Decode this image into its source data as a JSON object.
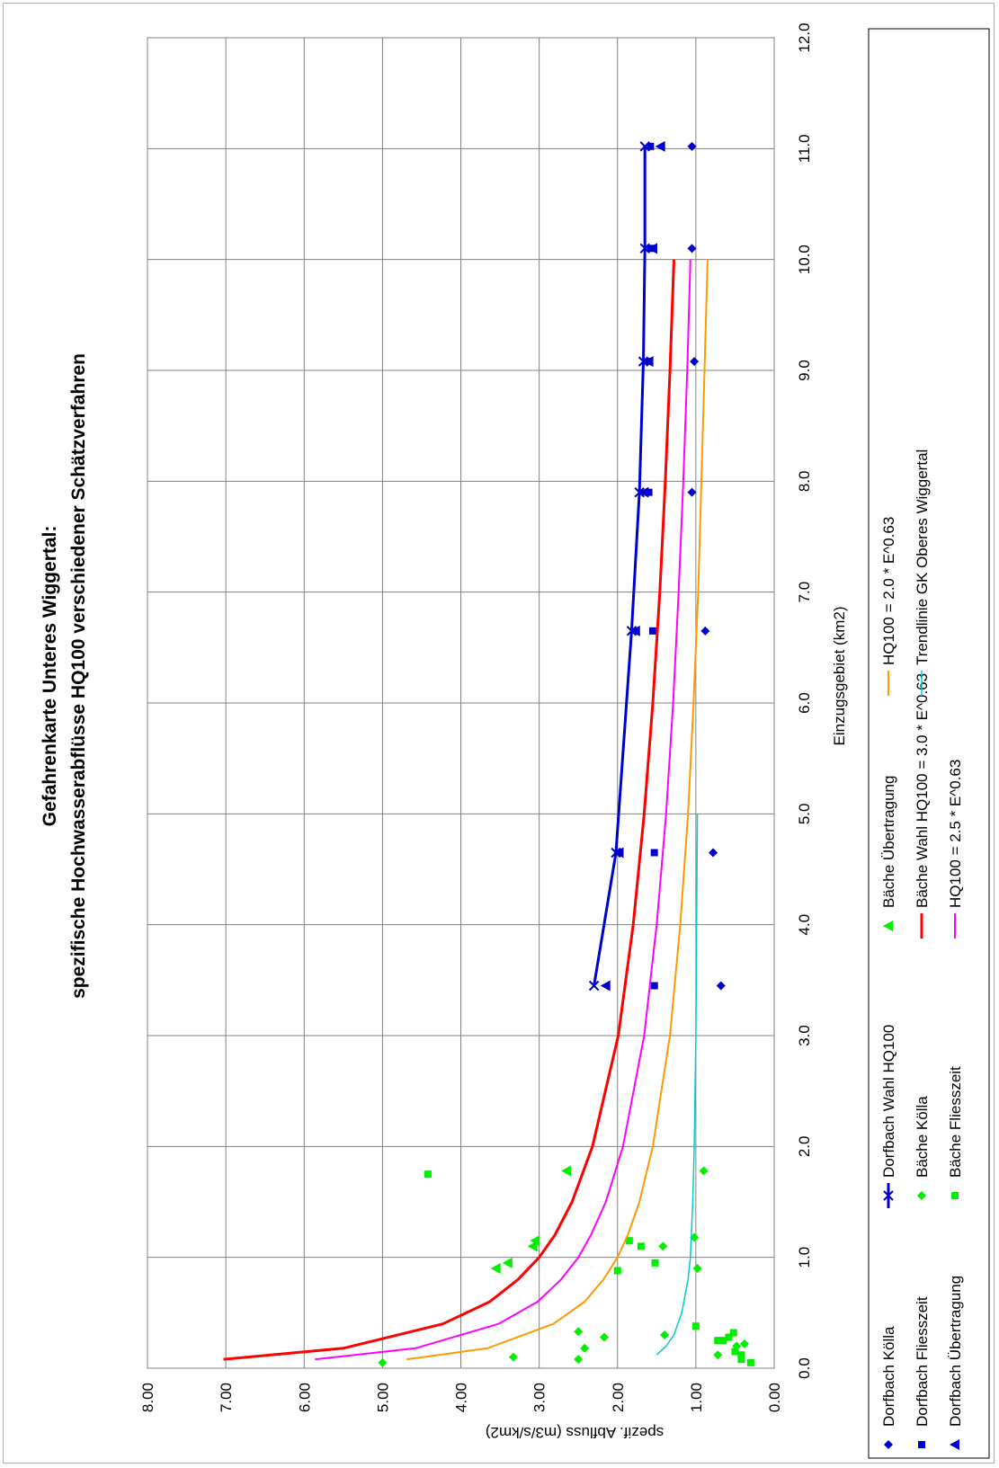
{
  "chart_data": {
    "type": "scatter",
    "title": "Gefahrenkarte Unteres Wiggertal:",
    "subtitle": "spezifische Hochwasserabflüsse HQ100 verschiedener Schätzverfahren",
    "xlabel": "Einzugsgebiet (km2)",
    "ylabel": "spezif. Abfluss (m3/s/km2)",
    "xlim": [
      0,
      12
    ],
    "ylim": [
      0,
      8
    ],
    "x_ticks": [
      "0.0",
      "1.0",
      "2.0",
      "3.0",
      "4.0",
      "5.0",
      "6.0",
      "7.0",
      "8.0",
      "9.0",
      "10.0",
      "11.0",
      "12.0"
    ],
    "y_ticks": [
      "0.00",
      "1.00",
      "2.00",
      "3.00",
      "4.00",
      "5.00",
      "6.00",
      "7.00",
      "8.00"
    ],
    "grid": true,
    "legend_position": "bottom",
    "series": [
      {
        "name": "Dorfbach Kölla",
        "kind": "marker",
        "marker": "diamond",
        "color": "#0000cc",
        "points": [
          [
            3.45,
            0.68
          ],
          [
            4.65,
            0.78
          ],
          [
            6.65,
            0.88
          ],
          [
            7.9,
            1.05
          ],
          [
            9.08,
            1.02
          ],
          [
            10.1,
            1.05
          ],
          [
            11.02,
            1.05
          ]
        ]
      },
      {
        "name": "Dorfbach Fliesszeit",
        "kind": "marker",
        "marker": "square",
        "color": "#0000cc",
        "points": [
          [
            3.45,
            1.53
          ],
          [
            4.65,
            1.53
          ],
          [
            6.65,
            1.55
          ],
          [
            7.9,
            1.6
          ],
          [
            9.08,
            1.6
          ],
          [
            10.1,
            1.58
          ],
          [
            11.02,
            1.58
          ]
        ]
      },
      {
        "name": "Dorfbach Übertragung",
        "kind": "marker",
        "marker": "triangle",
        "color": "#0000cc",
        "points": [
          [
            3.45,
            2.15
          ],
          [
            4.65,
            1.98
          ],
          [
            6.65,
            1.77
          ],
          [
            7.9,
            1.66
          ],
          [
            9.08,
            1.6
          ],
          [
            10.1,
            1.55
          ],
          [
            11.02,
            1.45
          ]
        ]
      },
      {
        "name": "Dorfbach Wahl HQ100",
        "kind": "line",
        "marker": "x",
        "color": "#0000cc",
        "width": 3,
        "points": [
          [
            3.45,
            2.3
          ],
          [
            4.65,
            2.02
          ],
          [
            6.65,
            1.82
          ],
          [
            7.9,
            1.72
          ],
          [
            9.08,
            1.67
          ],
          [
            10.1,
            1.65
          ],
          [
            11.02,
            1.65
          ]
        ]
      },
      {
        "name": "Bäche Kölla",
        "kind": "marker",
        "marker": "diamond",
        "color": "#00ee00",
        "points": [
          [
            0.05,
            5.0
          ],
          [
            0.1,
            3.33
          ],
          [
            0.08,
            2.5
          ],
          [
            0.18,
            2.42
          ],
          [
            0.28,
            2.17
          ],
          [
            0.33,
            2.5
          ],
          [
            0.3,
            1.4
          ],
          [
            0.9,
            0.98
          ],
          [
            1.1,
            1.42
          ],
          [
            1.18,
            1.02
          ],
          [
            1.78,
            0.9
          ],
          [
            0.12,
            0.72
          ],
          [
            0.2,
            0.48
          ],
          [
            0.22,
            0.38
          ]
        ]
      },
      {
        "name": "Bäche Fliesszeit",
        "kind": "marker",
        "marker": "square",
        "color": "#00ee00",
        "points": [
          [
            1.75,
            4.42
          ],
          [
            0.88,
            2.0
          ],
          [
            0.95,
            1.52
          ],
          [
            1.1,
            1.7
          ],
          [
            1.15,
            1.85
          ],
          [
            0.25,
            0.72
          ],
          [
            0.25,
            0.65
          ],
          [
            0.28,
            0.58
          ],
          [
            0.32,
            0.52
          ],
          [
            0.38,
            1.0
          ],
          [
            0.12,
            0.42
          ],
          [
            0.08,
            0.42
          ],
          [
            0.05,
            0.3
          ],
          [
            0.15,
            0.5
          ]
        ]
      },
      {
        "name": "Bäche Übertragung",
        "kind": "marker",
        "marker": "triangle",
        "color": "#00ee00",
        "points": [
          [
            1.78,
            2.65
          ],
          [
            1.15,
            3.05
          ],
          [
            1.1,
            3.08
          ],
          [
            0.95,
            3.4
          ],
          [
            0.9,
            3.55
          ]
        ]
      },
      {
        "name": "Bäche Wahl HQ100 = 3.0 * E^0.63",
        "kind": "line",
        "marker": "none",
        "color": "#ff0000",
        "width": 3,
        "points": [
          [
            0.08,
            7.03
          ],
          [
            0.18,
            5.5
          ],
          [
            0.4,
            4.23
          ],
          [
            0.6,
            3.63
          ],
          [
            0.8,
            3.27
          ],
          [
            1.0,
            3.0
          ],
          [
            1.2,
            2.8
          ],
          [
            1.5,
            2.58
          ],
          [
            2.0,
            2.32
          ],
          [
            3.0,
            1.99
          ],
          [
            4.0,
            1.8
          ],
          [
            5.0,
            1.66
          ],
          [
            6.0,
            1.55
          ],
          [
            7.0,
            1.46
          ],
          [
            8.0,
            1.39
          ],
          [
            9.0,
            1.33
          ],
          [
            10.0,
            1.28
          ]
        ]
      },
      {
        "name": "HQ100 = 2.5 * E^0.63",
        "kind": "line",
        "marker": "none",
        "color": "#ff00ff",
        "width": 2,
        "points": [
          [
            0.08,
            5.86
          ],
          [
            0.18,
            4.58
          ],
          [
            0.4,
            3.52
          ],
          [
            0.6,
            3.02
          ],
          [
            0.8,
            2.72
          ],
          [
            1.0,
            2.5
          ],
          [
            1.2,
            2.34
          ],
          [
            1.5,
            2.15
          ],
          [
            2.0,
            1.93
          ],
          [
            3.0,
            1.66
          ],
          [
            4.0,
            1.5
          ],
          [
            5.0,
            1.38
          ],
          [
            6.0,
            1.29
          ],
          [
            7.0,
            1.22
          ],
          [
            8.0,
            1.16
          ],
          [
            9.0,
            1.11
          ],
          [
            10.0,
            1.07
          ]
        ]
      },
      {
        "name": "HQ100 = 2.0 * E^0.63",
        "kind": "line",
        "marker": "none",
        "color": "#ff9900",
        "width": 2,
        "points": [
          [
            0.08,
            4.69
          ],
          [
            0.18,
            3.66
          ],
          [
            0.4,
            2.82
          ],
          [
            0.6,
            2.42
          ],
          [
            0.8,
            2.18
          ],
          [
            1.0,
            2.0
          ],
          [
            1.2,
            1.87
          ],
          [
            1.5,
            1.72
          ],
          [
            2.0,
            1.55
          ],
          [
            3.0,
            1.33
          ],
          [
            4.0,
            1.2
          ],
          [
            5.0,
            1.1
          ],
          [
            6.0,
            1.03
          ],
          [
            7.0,
            0.97
          ],
          [
            8.0,
            0.93
          ],
          [
            9.0,
            0.89
          ],
          [
            10.0,
            0.85
          ]
        ]
      },
      {
        "name": "Trendlinie GK Oberes Wiggertal",
        "kind": "line",
        "marker": "none",
        "color": "#00cccc",
        "width": 1.5,
        "points": [
          [
            0.12,
            1.5
          ],
          [
            0.2,
            1.38
          ],
          [
            0.3,
            1.28
          ],
          [
            0.5,
            1.18
          ],
          [
            0.8,
            1.1
          ],
          [
            1.0,
            1.07
          ],
          [
            1.5,
            1.04
          ],
          [
            2.0,
            1.02
          ],
          [
            3.0,
            1.0
          ],
          [
            4.0,
            0.99
          ],
          [
            5.0,
            0.98
          ]
        ]
      }
    ],
    "legend_entries": [
      "Dorfbach Kölla",
      "Bäche Kölla",
      "HQ100 = 2.5 * E^0.63",
      "Dorfbach Fliesszeit",
      "Bäche Fliesszeit",
      "Bäche Wahl HQ100 = 3.0 * E^0.63",
      "Dorfbach Übertragung",
      "Bäche Übertragung",
      "Trendlinie GK Oberes Wiggertal",
      "Dorfbach Wahl HQ100",
      "HQ100 = 2.0 * E^0.63"
    ]
  }
}
